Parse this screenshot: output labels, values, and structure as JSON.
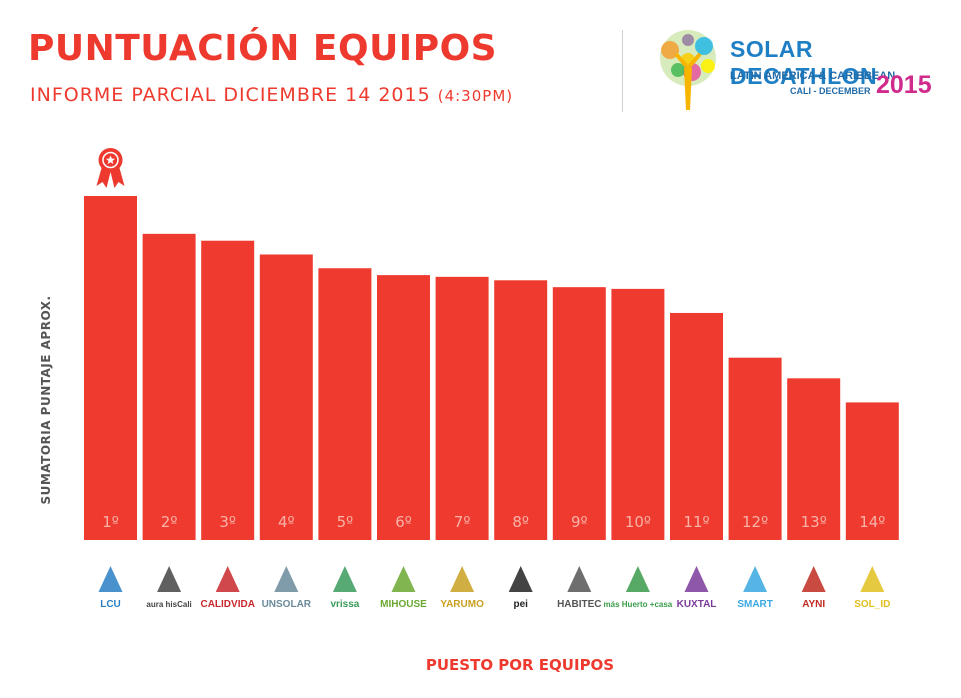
{
  "header": {
    "title": "PUNTUACIÓN EQUIPOS",
    "subtitle": "INFORME PARCIAL DICIEMBRE 14 2015",
    "time": "(4:30PM)"
  },
  "event_logo": {
    "line1": "SOLAR DECATHLON",
    "line2": "LATIN AMERICA & CARIBBEAN",
    "line3": "CALI - DECEMBER",
    "year": "2015"
  },
  "colors": {
    "accent": "#ee3a2e",
    "bar": "#ef3b2f",
    "bar_label": "#f8b2a8",
    "logo_blue": "#1f7fc4",
    "logo_magenta": "#d02a8d"
  },
  "award_icon": "ribbon-star-icon",
  "chart_data": {
    "type": "bar",
    "title": "PUNTUACIÓN EQUIPOS",
    "subtitle": "INFORME PARCIAL DICIEMBRE 14 2015 (4:30PM)",
    "xlabel": "PUESTO POR EQUIPOS",
    "ylabel": "SUMATORIA PUNTAJE  APROX.",
    "categories": [
      "1º",
      "2º",
      "3º",
      "4º",
      "5º",
      "6º",
      "7º",
      "8º",
      "9º",
      "10º",
      "11º",
      "12º",
      "13º",
      "14º"
    ],
    "teams": [
      "LCU",
      "aura hisCali",
      "CALIDVIDA",
      "UNSOLAR",
      "vrissa",
      "MIHOUSE",
      "YARUMO",
      "pei",
      "HABITEC",
      "más Huerto +casa",
      "KUXTAL",
      "SMART",
      "AYNI",
      "SOL_ID"
    ],
    "values": [
      100,
      89,
      87,
      83,
      79,
      77,
      76.5,
      75.5,
      73.5,
      73,
      66,
      53,
      47,
      40
    ],
    "ylim": [
      0,
      100
    ],
    "grid": false,
    "legend": "none"
  }
}
